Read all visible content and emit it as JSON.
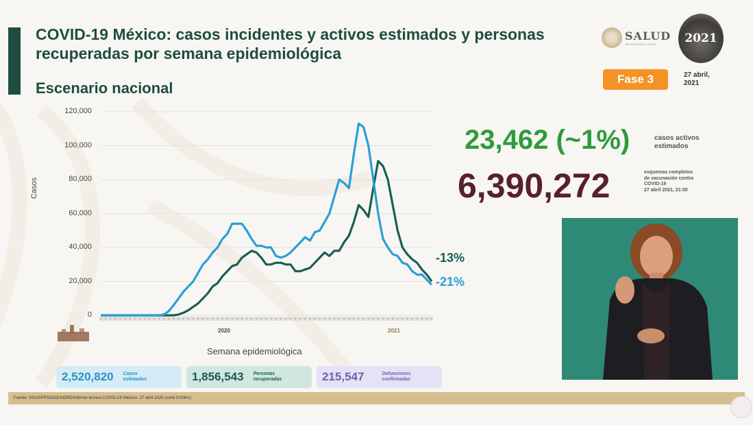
{
  "header": {
    "title": "COVID-19 México: casos incidentes y activos estimados y personas recuperadas por semana epidemiológica",
    "subtitle": "Escenario nacional",
    "brand": "SALUD",
    "brand_sub": "SECRETARÍA DE SALUD",
    "logo_year": "2021",
    "phase_badge": "Fase 3",
    "date": "27 abril, 2021"
  },
  "highlights": {
    "active_cases": "23,462 (~1%)",
    "active_cases_label": "casos activos estimados",
    "vaccination": "6,390,272",
    "vaccination_label_1": "esquemas completos",
    "vaccination_label_2": "de vacunación contra",
    "vaccination_label_3": "COVID-19",
    "vaccination_label_4": "27 abril 2021, 21:00"
  },
  "stats": [
    {
      "value": "2,520,820",
      "label_1": "Casos",
      "label_2": "estimados",
      "bg": "#d4ecf5",
      "color": "#2b8fc4"
    },
    {
      "value": "1,856,543",
      "label_1": "Personas",
      "label_2": "recuperadas",
      "bg": "#cfe7e0",
      "color": "#1f5a4c"
    },
    {
      "value": "215,547",
      "label_1": "Defunciones",
      "label_2": "confirmadas",
      "bg": "#e4e2f5",
      "color": "#6b63b0"
    }
  ],
  "footer": {
    "source": "Fuente: SSA/SPPS/DGE/InDRE/Informe técnico.COVID-19 /México- 27 abril 2020 (corte 9:00hrs)"
  },
  "colors": {
    "incident": "#2a9fd6",
    "active": "#1b5e52",
    "title": "#1f4d3f",
    "phase": "#f39325",
    "green_figure": "#2e9b3a",
    "maroon_figure": "#5a1f2c"
  },
  "chart_data": {
    "type": "line",
    "title": "COVID-19 México: casos incidentes y activos estimados y personas recuperadas por semana epidemiológica",
    "xlabel": "Semana epidemiológica",
    "ylabel": "Casos",
    "ylim": [
      0,
      120000
    ],
    "yticks": [
      "0",
      "20,000",
      "40,000",
      "60,000",
      "80,000",
      "100,000",
      "120,000"
    ],
    "year_labels": [
      "2020",
      "2021"
    ],
    "grid": true,
    "annotations": [
      {
        "text": "-13%",
        "series": "Casos activos estimados",
        "color": "#1b5e52"
      },
      {
        "text": "-21%",
        "series": "Casos incidentes estimados",
        "color": "#2a9fd6"
      }
    ],
    "x": [
      1,
      2,
      3,
      4,
      5,
      6,
      7,
      8,
      9,
      10,
      11,
      12,
      13,
      14,
      15,
      16,
      17,
      18,
      19,
      20,
      21,
      22,
      23,
      24,
      25,
      26,
      27,
      28,
      29,
      30,
      31,
      32,
      33,
      34,
      35,
      36,
      37,
      38,
      39,
      40,
      41,
      42,
      43,
      44,
      45,
      46,
      47,
      48,
      49,
      50,
      51,
      52,
      53,
      54,
      55,
      56,
      57,
      58,
      59,
      60,
      61,
      62,
      63,
      64,
      65,
      66,
      67,
      68,
      69
    ],
    "series": [
      {
        "name": "Casos incidentes estimados",
        "color": "#2a9fd6",
        "values": [
          0,
          0,
          0,
          0,
          0,
          0,
          0,
          0,
          0,
          0,
          0,
          0,
          0,
          500,
          2500,
          6000,
          10000,
          14000,
          17000,
          20000,
          25000,
          30000,
          33000,
          37000,
          40000,
          45000,
          48000,
          54000,
          54000,
          54000,
          50000,
          45000,
          41000,
          41000,
          40000,
          40000,
          35000,
          34000,
          35000,
          37000,
          40000,
          43000,
          46000,
          44000,
          49000,
          50000,
          55000,
          60000,
          70000,
          80000,
          78000,
          75000,
          95000,
          113000,
          111000,
          100000,
          80000,
          60000,
          45000,
          40000,
          36000,
          35000,
          31000,
          30000,
          26000,
          24000,
          24000,
          21000,
          18000
        ]
      },
      {
        "name": "Casos activos estimados",
        "color": "#1b5e52",
        "values": [
          0,
          0,
          0,
          0,
          0,
          0,
          0,
          0,
          0,
          0,
          0,
          0,
          0,
          0,
          0,
          0,
          500,
          1500,
          3000,
          5000,
          7000,
          10000,
          13000,
          17000,
          19000,
          23000,
          26000,
          29000,
          30000,
          34000,
          36000,
          38000,
          37000,
          34000,
          30000,
          30000,
          31000,
          31000,
          30000,
          30000,
          26000,
          26000,
          27000,
          28000,
          31000,
          34000,
          37000,
          35000,
          38000,
          38000,
          43000,
          47000,
          55000,
          65000,
          62000,
          58000,
          75000,
          91000,
          88000,
          80000,
          65000,
          50000,
          40000,
          36000,
          33000,
          31000,
          27000,
          24000,
          20000
        ]
      }
    ]
  }
}
